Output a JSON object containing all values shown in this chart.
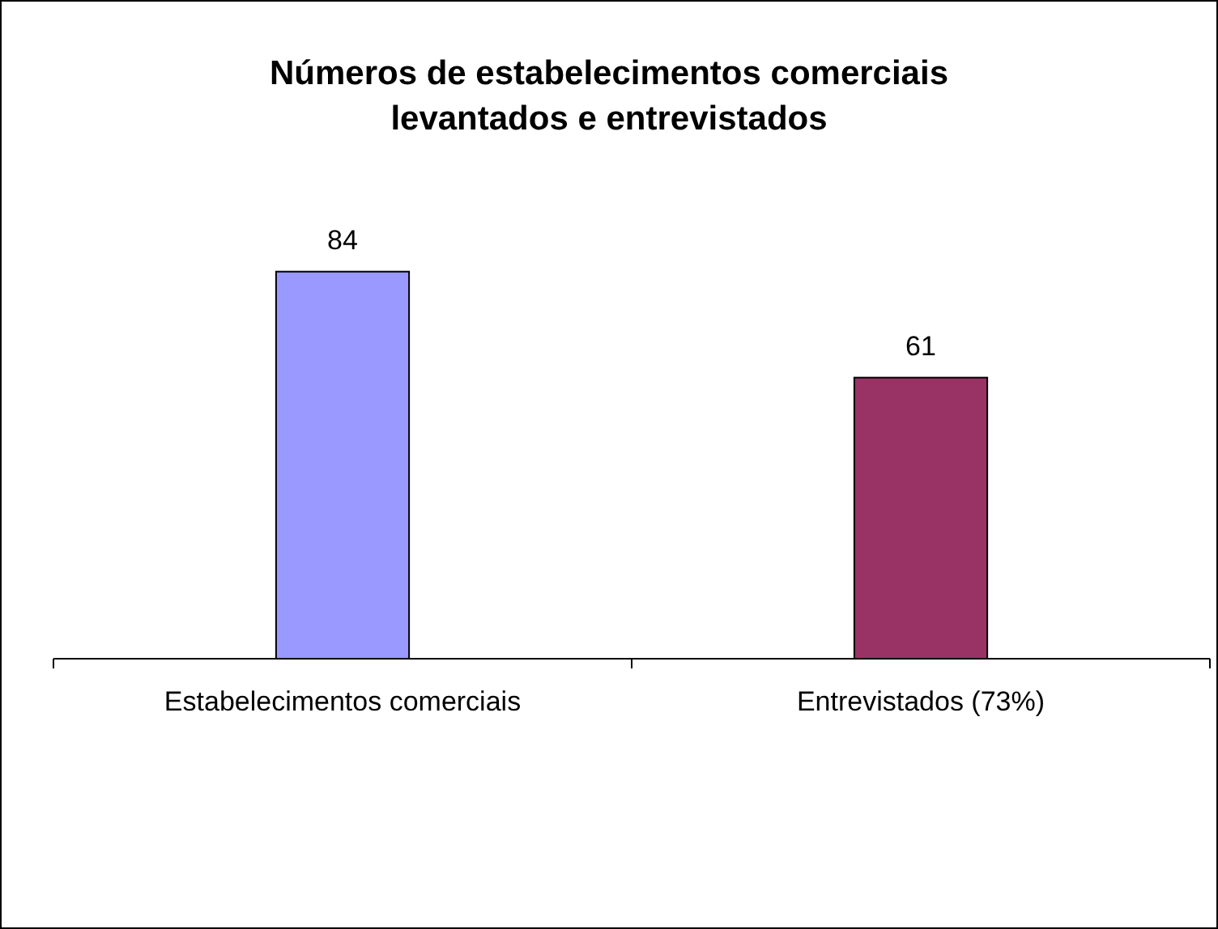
{
  "chart_data": {
    "type": "bar",
    "title": "Números de estabelecimentos comerciais levantados e entrevistados",
    "categories": [
      "Estabelecimentos comerciais",
      "Entrevistados (73%)"
    ],
    "values": [
      84,
      61
    ],
    "colors": [
      "#9999ff",
      "#993366"
    ],
    "data_labels": true,
    "grid": false
  }
}
